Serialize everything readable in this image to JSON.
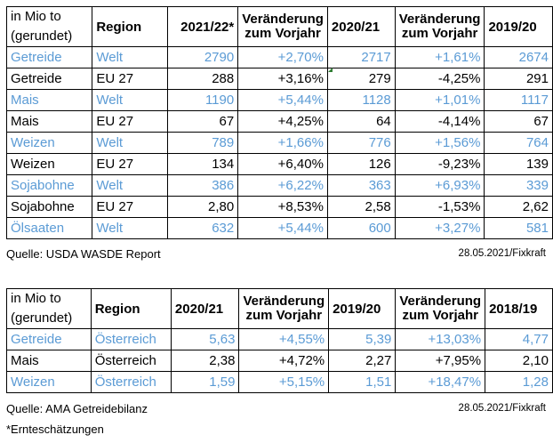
{
  "table1": {
    "header": {
      "unit_line1": "in Mio to",
      "unit_line2": "(gerundet)",
      "region": "Region",
      "year1": "2021/22*",
      "change1_line1": "Veränderung",
      "change1_line2": "zum Vorjahr",
      "year2": "2020/21",
      "change2_line1": "Veränderung",
      "change2_line2": "zum Vorjahr",
      "year3": "2019/20"
    },
    "rows": [
      {
        "product": "Getreide",
        "region": "Welt",
        "v1": "2790",
        "c1": "+2,70%",
        "v2": "2717",
        "c2": "+1,61%",
        "v3": "2674"
      },
      {
        "product": "Getreide",
        "region": "EU 27",
        "v1": "288",
        "c1": "+3,16%",
        "v2": "279",
        "c2": "-4,25%",
        "v3": "291"
      },
      {
        "product": "Mais",
        "region": "Welt",
        "v1": "1190",
        "c1": "+5,44%",
        "v2": "1128",
        "c2": "+1,01%",
        "v3": "1117"
      },
      {
        "product": "Mais",
        "region": "EU 27",
        "v1": "67",
        "c1": "+4,25%",
        "v2": "64",
        "c2": "-4,14%",
        "v3": "67"
      },
      {
        "product": "Weizen",
        "region": "Welt",
        "v1": "789",
        "c1": "+1,66%",
        "v2": "776",
        "c2": "+1,56%",
        "v3": "764"
      },
      {
        "product": "Weizen",
        "region": "EU 27",
        "v1": "134",
        "c1": "+6,40%",
        "v2": "126",
        "c2": "-9,23%",
        "v3": "139"
      },
      {
        "product": "Sojabohne",
        "region": "Welt",
        "v1": "386",
        "c1": "+6,22%",
        "v2": "363",
        "c2": "+6,93%",
        "v3": "339"
      },
      {
        "product": "Sojabohne",
        "region": "EU 27",
        "v1": "2,80",
        "c1": "+8,53%",
        "v2": "2,58",
        "c2": "-1,53%",
        "v3": "2,62"
      },
      {
        "product": "Ölsaaten",
        "region": "Welt",
        "v1": "632",
        "c1": "+5,44%",
        "v2": "600",
        "c2": "+3,27%",
        "v3": "581"
      }
    ],
    "source": "Quelle: USDA WASDE Report",
    "date": "28.05.2021/Fixkraft"
  },
  "table2": {
    "header": {
      "unit_line1": "in Mio to",
      "unit_line2": "(gerundet)",
      "region": "Region",
      "year1": "2020/21",
      "change1_line1": "Veränderung",
      "change1_line2": "zum Vorjahr",
      "year2": "2019/20",
      "change2_line1": "Veränderung",
      "change2_line2": "zum Vorjahr",
      "year3": "2018/19"
    },
    "rows": [
      {
        "product": "Getreide",
        "region": "Österreich",
        "v1": "5,63",
        "c1": "+4,55%",
        "v2": "5,39",
        "c2": "+13,03%",
        "v3": "4,77"
      },
      {
        "product": "Mais",
        "region": "Österreich",
        "v1": "2,38",
        "c1": "+4,72%",
        "v2": "2,27",
        "c2": "+7,95%",
        "v3": "2,10"
      },
      {
        "product": "Weizen",
        "region": "Österreich",
        "v1": "1,59",
        "c1": "+5,15%",
        "v2": "1,51",
        "c2": "+18,47%",
        "v3": "1,28"
      }
    ],
    "source": "Quelle: AMA Getreidebilanz",
    "date": "28.05.2021/Fixkraft"
  },
  "footnote": "*Ernteschätzungen",
  "colors": {
    "accent_blue": "#5b9bd5",
    "text": "#000000",
    "border": "#000000"
  }
}
